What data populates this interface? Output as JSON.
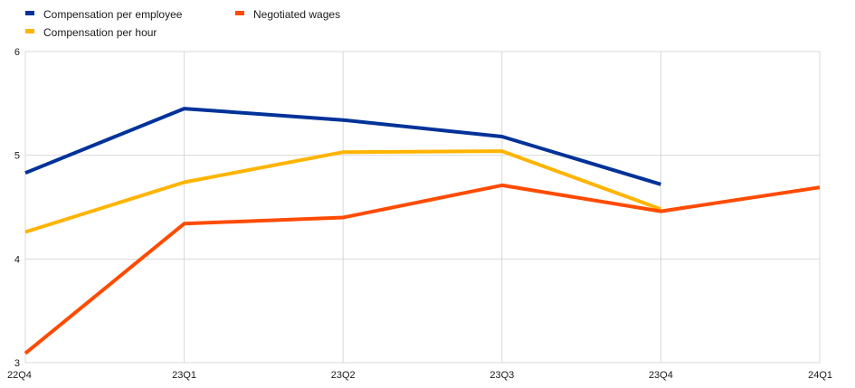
{
  "chart_data": {
    "type": "line",
    "title": "",
    "xlabel": "",
    "ylabel": "",
    "categories": [
      "22Q4",
      "23Q1",
      "23Q2",
      "23Q3",
      "23Q4",
      "24Q1"
    ],
    "yticks": [
      "3",
      "4",
      "5",
      "6"
    ],
    "ylim": [
      3,
      6
    ],
    "grid": true,
    "legend_position": "top-left",
    "series": [
      {
        "name": "Compensation per employee",
        "color": "#003299",
        "values": [
          4.83,
          5.45,
          5.34,
          5.18,
          4.72,
          null
        ]
      },
      {
        "name": "Compensation per hour",
        "color": "#FFB400",
        "values": [
          4.26,
          4.74,
          5.03,
          5.04,
          4.48,
          null
        ]
      },
      {
        "name": "Negotiated wages",
        "color": "#FF4B00",
        "values": [
          3.09,
          4.34,
          4.4,
          4.71,
          4.46,
          4.69
        ]
      }
    ]
  }
}
